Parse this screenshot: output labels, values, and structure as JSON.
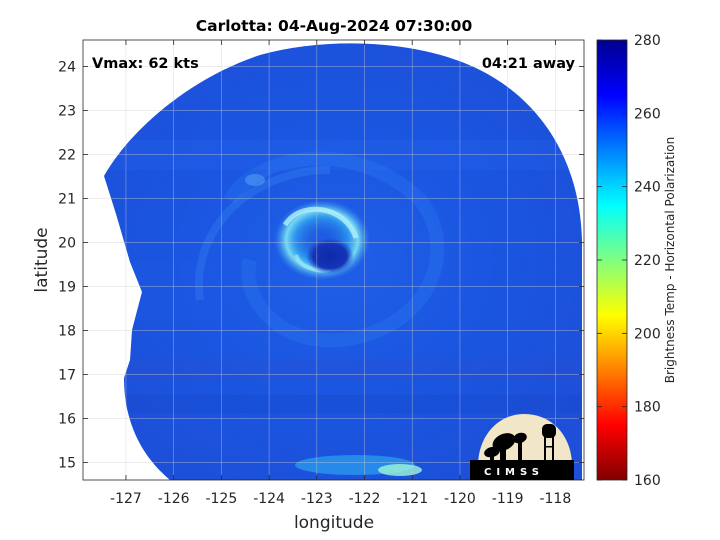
{
  "chart_data": {
    "type": "heatmap",
    "title": "Carlotta: 04-Aug-2024 07:30:00",
    "xlabel": "longitude",
    "ylabel": "latitude",
    "xlim": [
      -127.9,
      -117.4
    ],
    "ylim": [
      14.6,
      24.6
    ],
    "x_ticks": [
      -127,
      -126,
      -125,
      -124,
      -123,
      -122,
      -121,
      -120,
      -119,
      -118
    ],
    "y_ticks": [
      15,
      16,
      17,
      18,
      19,
      20,
      21,
      22,
      23,
      24
    ],
    "grid": true,
    "annotations": {
      "vmax": "Vmax: 62 kts",
      "time_offset": "04:21 away"
    },
    "colorbar": {
      "label": "Brightness Temp - Horizontal Polarization",
      "range": [
        160,
        280
      ],
      "ticks": [
        160,
        180,
        200,
        220,
        240,
        260,
        280
      ],
      "colors": [
        "#800000",
        "#ff0000",
        "#ff8000",
        "#ffff00",
        "#80ff80",
        "#00ffff",
        "#0080ff",
        "#0000ff",
        "#00008f"
      ]
    },
    "storm_center": {
      "lon": -122.6,
      "lat": 19.7
    }
  },
  "logo": {
    "text": "CIMSS"
  }
}
